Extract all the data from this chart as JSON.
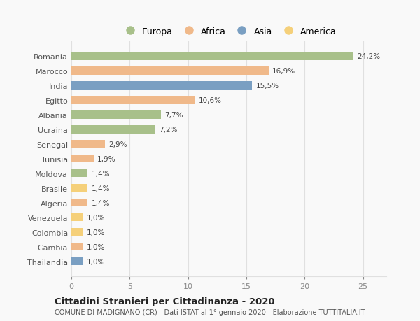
{
  "countries": [
    "Romania",
    "Marocco",
    "India",
    "Egitto",
    "Albania",
    "Ucraina",
    "Senegal",
    "Tunisia",
    "Moldova",
    "Brasile",
    "Algeria",
    "Venezuela",
    "Colombia",
    "Gambia",
    "Thailandia"
  ],
  "values": [
    24.2,
    16.9,
    15.5,
    10.6,
    7.7,
    7.2,
    2.9,
    1.9,
    1.4,
    1.4,
    1.4,
    1.0,
    1.0,
    1.0,
    1.0
  ],
  "labels": [
    "24,2%",
    "16,9%",
    "15,5%",
    "10,6%",
    "7,7%",
    "7,2%",
    "2,9%",
    "1,9%",
    "1,4%",
    "1,4%",
    "1,4%",
    "1,0%",
    "1,0%",
    "1,0%",
    "1,0%"
  ],
  "continents": [
    "Europa",
    "Africa",
    "Asia",
    "Africa",
    "Europa",
    "Europa",
    "Africa",
    "Africa",
    "Europa",
    "America",
    "Africa",
    "America",
    "America",
    "Africa",
    "Asia"
  ],
  "colors": {
    "Europa": "#a8c08a",
    "Africa": "#f0b98a",
    "Asia": "#7a9fc2",
    "America": "#f5d07a"
  },
  "legend_order": [
    "Europa",
    "Africa",
    "Asia",
    "America"
  ],
  "title": "Cittadini Stranieri per Cittadinanza - 2020",
  "subtitle": "COMUNE DI MADIGNANO (CR) - Dati ISTAT al 1° gennaio 2020 - Elaborazione TUTTITALIA.IT",
  "xlim": [
    0,
    27
  ],
  "xticks": [
    0,
    5,
    10,
    15,
    20,
    25
  ],
  "background_color": "#f9f9f9",
  "grid_color": "#e0e0e0"
}
